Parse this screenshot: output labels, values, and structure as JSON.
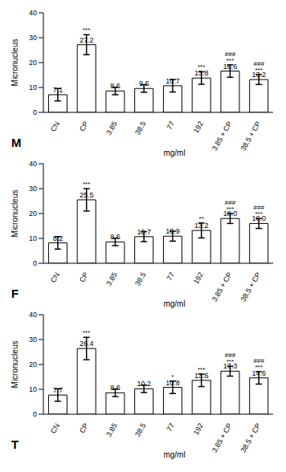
{
  "chart_data": [
    {
      "type": "bar",
      "panel": "M",
      "y_label": "Micronucleus",
      "x_label": "mg/ml",
      "categories": [
        "CN",
        "CP",
        "3.85",
        "38.5",
        "77",
        "192",
        "3.85 + CP",
        "38.5 + CP"
      ],
      "values": [
        7.1,
        27.2,
        8.6,
        9.6,
        10.7,
        13.8,
        16.6,
        13.2
      ],
      "value_labels": [
        "7.1",
        "27.2",
        "8.6",
        "9.6",
        "10.7",
        "13.8",
        "16.6",
        "13.2"
      ],
      "errors": [
        2.5,
        4,
        1.5,
        1.5,
        2.5,
        2.5,
        2.5,
        2
      ],
      "significance": [
        null,
        [
          "***"
        ],
        null,
        null,
        null,
        [
          "***"
        ],
        [
          "###",
          "***"
        ],
        [
          "###",
          "***"
        ]
      ],
      "ylim": [
        0,
        40
      ],
      "yticks": [
        0,
        10,
        20,
        30,
        40
      ],
      "grid": false,
      "color": "#ffffff"
    },
    {
      "type": "bar",
      "panel": "F",
      "y_label": "Micronucleus",
      "x_label": "mg/ml",
      "categories": [
        "CN",
        "CP",
        "3.85",
        "38.5",
        "77",
        "192",
        "3.85 + CP",
        "38.5 + CP"
      ],
      "values": [
        8.2,
        25.5,
        8.6,
        10.7,
        10.9,
        13.2,
        18.0,
        16.0
      ],
      "value_labels": [
        "8.2",
        "25.5",
        "8.6",
        "10.7",
        "10.9",
        "13.2",
        "18.0",
        "16.0"
      ],
      "errors": [
        2.5,
        4.5,
        1.5,
        2,
        2,
        3,
        2,
        2
      ],
      "significance": [
        null,
        [
          "***"
        ],
        null,
        null,
        null,
        [
          "**"
        ],
        [
          "###",
          "***"
        ],
        [
          "###",
          "***"
        ]
      ],
      "ylim": [
        0,
        40
      ],
      "yticks": [
        0,
        10,
        20,
        30,
        40
      ],
      "grid": false,
      "color": "#ffffff"
    },
    {
      "type": "bar",
      "panel": "T",
      "y_label": "Micronucleus",
      "x_label": "mg/ml",
      "categories": [
        "CN",
        "CP",
        "3.85",
        "38.5",
        "77",
        "192",
        "3.85 + CP",
        "38.5 + CP"
      ],
      "values": [
        7.7,
        26.4,
        8.6,
        10.2,
        10.8,
        13.6,
        17.3,
        14.6
      ],
      "value_labels": [
        "7.7",
        "26.4",
        "8.6",
        "10.2",
        "10.8",
        "13.6",
        "17.3",
        "14.6"
      ],
      "errors": [
        2.5,
        4.5,
        1.5,
        1.5,
        2.5,
        2.5,
        2,
        2.5
      ],
      "significance": [
        null,
        [
          "***"
        ],
        null,
        null,
        [
          "*"
        ],
        [
          "***"
        ],
        [
          "###",
          "***"
        ],
        [
          "###",
          "***"
        ]
      ],
      "ylim": [
        0,
        40
      ],
      "yticks": [
        0,
        10,
        20,
        30,
        40
      ],
      "grid": false,
      "color": "#ffffff"
    }
  ]
}
